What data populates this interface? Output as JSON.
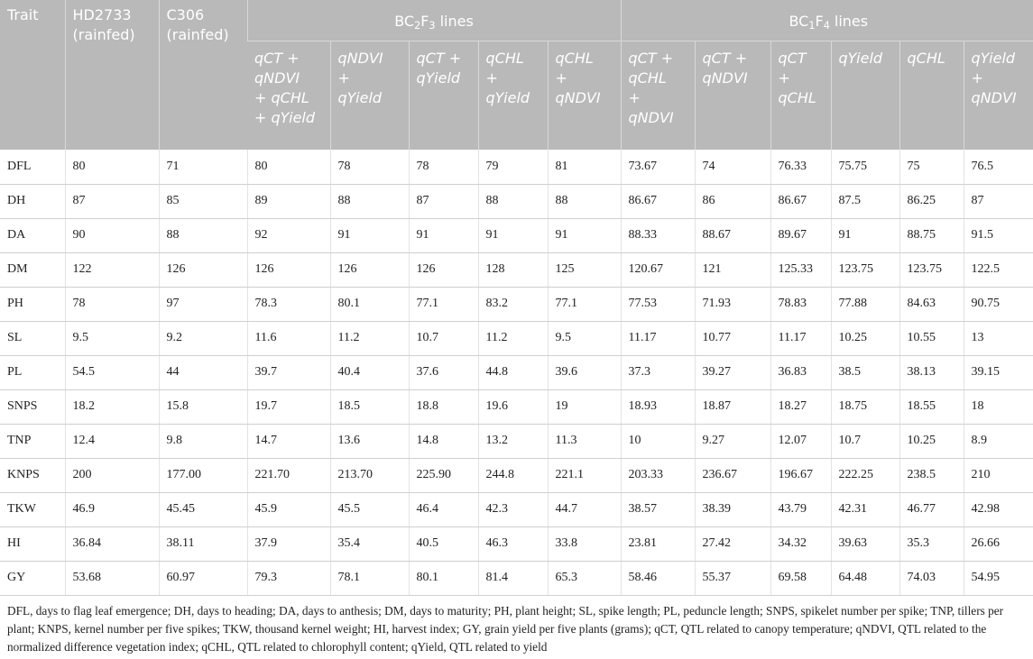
{
  "header": {
    "trait": "Trait",
    "hd2733_line1": "HD2733",
    "hd2733_line2": "(rainfed)",
    "c306_line1": "C306",
    "c306_line2": "(rainfed)",
    "group1_pre": "BC",
    "group1_sub1": "2",
    "group1_mid": "F",
    "group1_sub2": "3",
    "group1_post": " lines",
    "group2_pre": "BC",
    "group2_sub1": "1",
    "group2_mid": "F",
    "group2_sub2": "4",
    "group2_post": " lines",
    "bc2f3": [
      [
        "qCT +",
        "qNDVI",
        "+ qCHL",
        "+ qYield"
      ],
      [
        "qNDVI",
        "+",
        "qYield"
      ],
      [
        "qCT +",
        "qYield"
      ],
      [
        "qCHL",
        "+",
        "qYield"
      ],
      [
        "qCHL",
        "+",
        "qNDVI"
      ]
    ],
    "bc1f4": [
      [
        "qCT +",
        "qCHL",
        "+",
        "qNDVI"
      ],
      [
        "qCT +",
        "qNDVI"
      ],
      [
        "qCT",
        "+",
        "qCHL"
      ],
      [
        "qYield"
      ],
      [
        "qCHL"
      ],
      [
        "qYield",
        "+",
        "qNDVI"
      ]
    ]
  },
  "rows": [
    [
      "DFL",
      "80",
      "71",
      "80",
      "78",
      "78",
      "79",
      "81",
      "73.67",
      "74",
      "76.33",
      "75.75",
      "75",
      "76.5"
    ],
    [
      "DH",
      "87",
      "85",
      "89",
      "88",
      "87",
      "88",
      "88",
      "86.67",
      "86",
      "86.67",
      "87.5",
      "86.25",
      "87"
    ],
    [
      "DA",
      "90",
      "88",
      "92",
      "91",
      "91",
      "91",
      "91",
      "88.33",
      "88.67",
      "89.67",
      "91",
      "88.75",
      "91.5"
    ],
    [
      "DM",
      "122",
      "126",
      "126",
      "126",
      "126",
      "128",
      "125",
      "120.67",
      "121",
      "125.33",
      "123.75",
      "123.75",
      "122.5"
    ],
    [
      "PH",
      "78",
      "97",
      "78.3",
      "80.1",
      "77.1",
      "83.2",
      "77.1",
      "77.53",
      "71.93",
      "78.83",
      "77.88",
      "84.63",
      "90.75"
    ],
    [
      "SL",
      "9.5",
      "9.2",
      "11.6",
      "11.2",
      "10.7",
      "11.2",
      "9.5",
      "11.17",
      "10.77",
      "11.17",
      "10.25",
      "10.55",
      "13"
    ],
    [
      "PL",
      "54.5",
      "44",
      "39.7",
      "40.4",
      "37.6",
      "44.8",
      "39.6",
      "37.3",
      "39.27",
      "36.83",
      "38.5",
      "38.13",
      "39.15"
    ],
    [
      "SNPS",
      "18.2",
      "15.8",
      "19.7",
      "18.5",
      "18.8",
      "19.6",
      "19",
      "18.93",
      "18.87",
      "18.27",
      "18.75",
      "18.55",
      "18"
    ],
    [
      "TNP",
      "12.4",
      "9.8",
      "14.7",
      "13.6",
      "14.8",
      "13.2",
      "11.3",
      "10",
      "9.27",
      "12.07",
      "10.7",
      "10.25",
      "8.9"
    ],
    [
      "KNPS",
      "200",
      "177.00",
      "221.70",
      "213.70",
      "225.90",
      "244.8",
      "221.1",
      "203.33",
      "236.67",
      "196.67",
      "222.25",
      "238.5",
      "210"
    ],
    [
      "TKW",
      "46.9",
      "45.45",
      "45.9",
      "45.5",
      "46.4",
      "42.3",
      "44.7",
      "38.57",
      "38.39",
      "43.79",
      "42.31",
      "46.77",
      "42.98"
    ],
    [
      "HI",
      "36.84",
      "38.11",
      "37.9",
      "35.4",
      "40.5",
      "46.3",
      "33.8",
      "23.81",
      "27.42",
      "34.32",
      "39.63",
      "35.3",
      "26.66"
    ],
    [
      "GY",
      "53.68",
      "60.97",
      "79.3",
      "78.1",
      "80.1",
      "81.4",
      "65.3",
      "58.46",
      "55.37",
      "69.58",
      "64.48",
      "74.03",
      "54.95"
    ]
  ],
  "footnote": "DFL, days to flag leaf emergence; DH, days to heading; DA, days to anthesis; DM, days to maturity; PH, plant height; SL, spike length; PL, peduncle length; SNPS, spikelet number per spike; TNP, tillers per plant; KNPS, kernel number per five spikes; TKW, thousand kernel weight; HI, harvest index; GY, grain yield per five plants (grams); qCT, QTL related to canopy temperature; qNDVI, QTL related to the normalized difference vegetation index; qCHL, QTL related to chlorophyll content; qYield, QTL related to yield"
}
